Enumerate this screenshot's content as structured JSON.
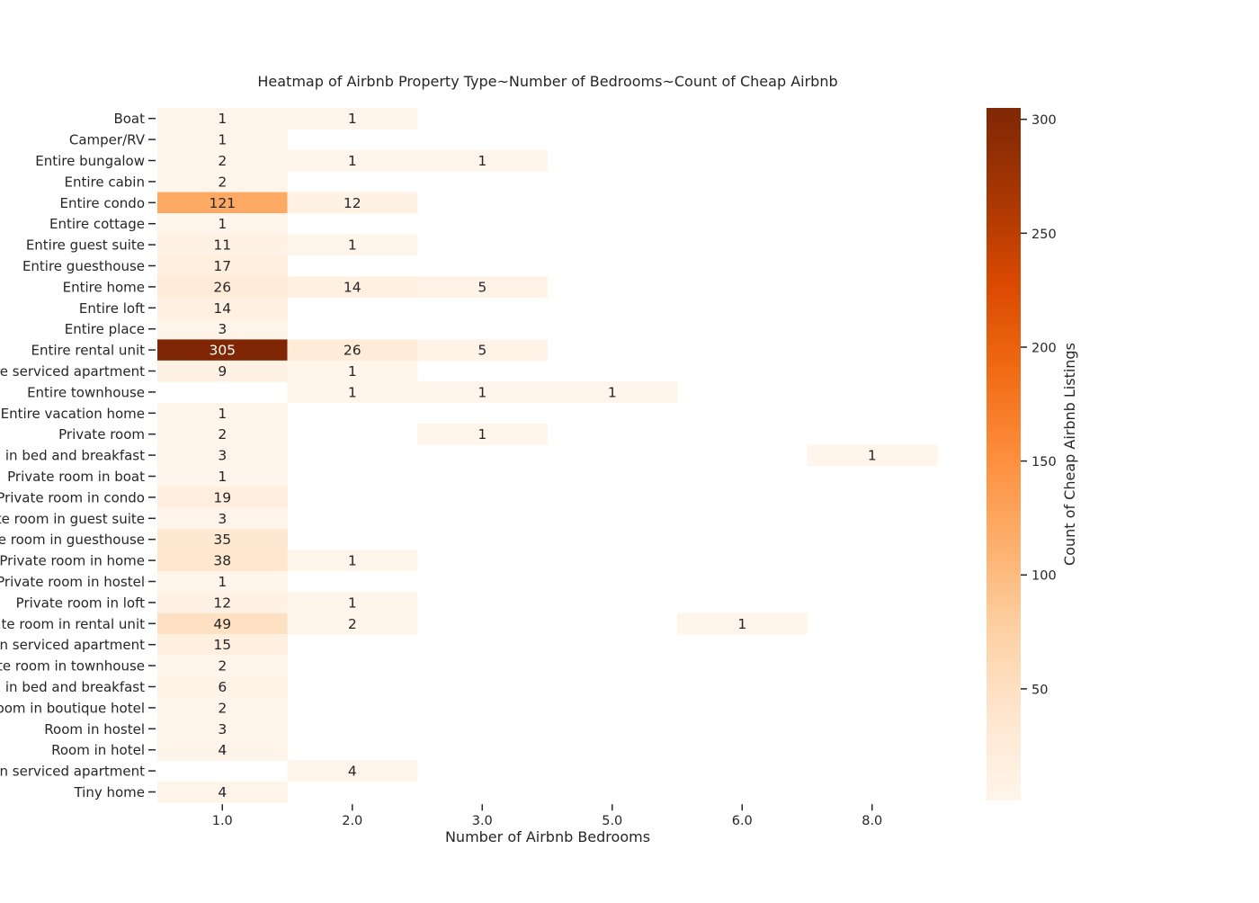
{
  "chart_data": {
    "type": "heatmap",
    "title": "Heatmap of Airbnb Property Type~Number of Bedrooms~Count of Cheap Airbnb",
    "xlabel": "Number of Airbnb Bedrooms",
    "ylabel": "",
    "x_categories": [
      "1.0",
      "2.0",
      "3.0",
      "5.0",
      "6.0",
      "8.0"
    ],
    "y_categories": [
      "Boat",
      "Camper/RV",
      "Entire bungalow",
      "Entire cabin",
      "Entire condo",
      "Entire cottage",
      "Entire guest suite",
      "Entire guesthouse",
      "Entire home",
      "Entire loft",
      "Entire place",
      "Entire rental unit",
      "Entire serviced apartment",
      "Entire townhouse",
      "Entire vacation home",
      "Private room",
      "Private room in bed and breakfast",
      "Private room in boat",
      "Private room in condo",
      "Private room in guest suite",
      "Private room in guesthouse",
      "Private room in home",
      "Private room in hostel",
      "Private room in loft",
      "Private room in rental unit",
      "Private room in serviced apartment",
      "Private room in townhouse",
      "Room in bed and breakfast",
      "Room in boutique hotel",
      "Room in hostel",
      "Room in hotel",
      "Room in serviced apartment",
      "Tiny home"
    ],
    "values": [
      [
        1,
        1,
        null,
        null,
        null,
        null
      ],
      [
        1,
        null,
        null,
        null,
        null,
        null
      ],
      [
        2,
        1,
        1,
        null,
        null,
        null
      ],
      [
        2,
        null,
        null,
        null,
        null,
        null
      ],
      [
        121,
        12,
        null,
        null,
        null,
        null
      ],
      [
        1,
        null,
        null,
        null,
        null,
        null
      ],
      [
        11,
        1,
        null,
        null,
        null,
        null
      ],
      [
        17,
        null,
        null,
        null,
        null,
        null
      ],
      [
        26,
        14,
        5,
        null,
        null,
        null
      ],
      [
        14,
        null,
        null,
        null,
        null,
        null
      ],
      [
        3,
        null,
        null,
        null,
        null,
        null
      ],
      [
        305,
        26,
        5,
        null,
        null,
        null
      ],
      [
        9,
        1,
        null,
        null,
        null,
        null
      ],
      [
        null,
        1,
        1,
        1,
        null,
        null
      ],
      [
        1,
        null,
        null,
        null,
        null,
        null
      ],
      [
        2,
        null,
        1,
        null,
        null,
        null
      ],
      [
        3,
        null,
        null,
        null,
        null,
        1
      ],
      [
        1,
        null,
        null,
        null,
        null,
        null
      ],
      [
        19,
        null,
        null,
        null,
        null,
        null
      ],
      [
        3,
        null,
        null,
        null,
        null,
        null
      ],
      [
        35,
        null,
        null,
        null,
        null,
        null
      ],
      [
        38,
        1,
        null,
        null,
        null,
        null
      ],
      [
        1,
        null,
        null,
        null,
        null,
        null
      ],
      [
        12,
        1,
        null,
        null,
        null,
        null
      ],
      [
        49,
        2,
        null,
        null,
        1,
        null
      ],
      [
        15,
        null,
        null,
        null,
        null,
        null
      ],
      [
        2,
        null,
        null,
        null,
        null,
        null
      ],
      [
        6,
        null,
        null,
        null,
        null,
        null
      ],
      [
        2,
        null,
        null,
        null,
        null,
        null
      ],
      [
        3,
        null,
        null,
        null,
        null,
        null
      ],
      [
        4,
        null,
        null,
        null,
        null,
        null
      ],
      [
        null,
        4,
        null,
        null,
        null,
        null
      ],
      [
        4,
        null,
        null,
        null,
        null,
        null
      ]
    ],
    "value_range": [
      1,
      305
    ],
    "colorbar": {
      "label": "Count of Cheap Airbnb Listings",
      "ticks": [
        50,
        100,
        150,
        200,
        250,
        300
      ],
      "colormap": "Oranges",
      "color_low": "#fff5eb",
      "color_high": "#7f2704"
    },
    "grid": false
  }
}
